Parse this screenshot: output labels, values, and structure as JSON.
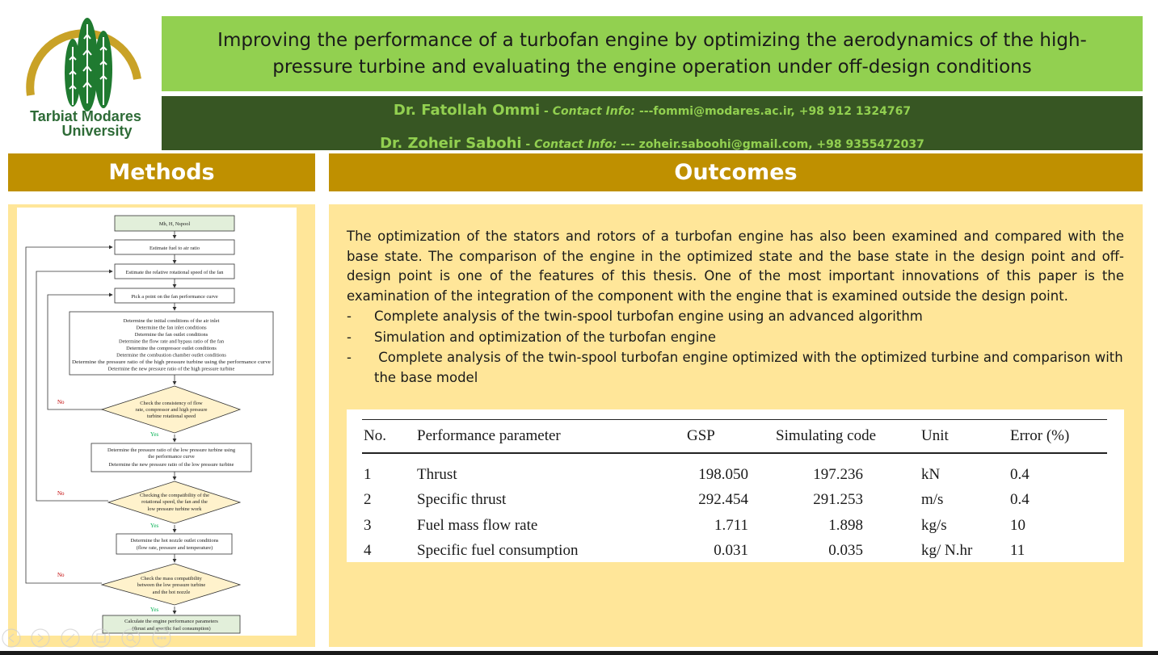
{
  "header": {
    "title": "Improving the performance of a turbofan engine by optimizing the aerodynamics of the high-pressure turbine and evaluating the engine operation under off-design conditions",
    "university": [
      "Tarbiat Modares",
      "University"
    ],
    "authors": [
      {
        "name": "Dr. Fatollah Ommi",
        "separator": " - ",
        "contact_label": "Contact Info:",
        "contact": " ---fommi@modares.ac.ir, +98 912 1324767"
      },
      {
        "name": "Dr. Zoheir Sabohi",
        "separator": " - ",
        "contact_label": "Contact Info:",
        "contact": " --- zoheir.saboohi@gmail.com, +98 9355472037"
      }
    ]
  },
  "methods": {
    "heading": "Methods",
    "flowchart": {
      "inputs": "Mh, H, Nspool",
      "step1": "Estimate fuel to air ratio",
      "step2": "Estimate the relative rotational speed of the fan",
      "step3": "Pick a point on the fan performance curve",
      "step4": [
        "Determine the initial conditions of the air inlet",
        "Determine the fan inlet conditions",
        "Determine the fan outlet conditions",
        "Determine the flow rate and bypass ratio of the fan",
        "Determine the compressor outlet conditions",
        "Determine the combustion chamber outlet conditions",
        "Determine the pressure ratio of the high pressure turbine using the performance curve",
        "Determine the new pressure ratio of the high pressure turbine"
      ],
      "decision1": [
        "Check the consistency of flow",
        "rate, compressor and high pressure",
        "turbine rotational speed"
      ],
      "step5": [
        "Determine the pressure ratio of the low pressure turbine using",
        "the performance curve",
        "Determine the new pressure ratio of the low pressure turbine"
      ],
      "decision2": [
        "Checking the compatibility of the",
        "rotational speed, the fan and the",
        "low pressure turbine work"
      ],
      "step6": [
        "Determine the hot nozzle outlet conditions",
        "(flow rate, pressure and temperature)"
      ],
      "decision3": [
        "Check the mass compatibility",
        "between the low pressure turbine",
        "and the hot nozzle"
      ],
      "step7": [
        "Calculate the engine performance parameters",
        "(thrust and specific fuel consumption)"
      ],
      "yes": "Yes",
      "no": "No"
    }
  },
  "outcomes": {
    "heading": "Outcomes",
    "intro": "The optimization of the stators and rotors of a turbofan engine has also been examined and compared with the base state. The comparison of the engine in the optimized state and the base state in the design point and off-design point is one of the features of this thesis. One of the most important innovations of this paper is the examination of the integration of the component with the engine that is examined outside the design point.",
    "bullets": [
      {
        "dash": "-",
        "text": "Complete analysis of the twin-spool turbofan engine using an advanced algorithm"
      },
      {
        "dash": "-",
        "text": "Simulation and optimization of the turbofan engine"
      },
      {
        "dash": "-",
        "text": " Complete analysis of the twin-spool turbofan engine optimized with the optimized turbine and comparison with the base model"
      }
    ],
    "table": {
      "headers": [
        "No.",
        "Performance parameter",
        "GSP",
        "Simulating code",
        "Unit",
        "Error (%)"
      ],
      "rows": [
        [
          "1",
          "Thrust",
          "198.050",
          "197.236",
          "kN",
          "0.4"
        ],
        [
          "2",
          "Specific thrust",
          "292.454",
          "291.253",
          "m/s",
          "0.4"
        ],
        [
          "3",
          "Fuel mass flow rate",
          "1.711",
          "1.898",
          "kg/s",
          "10"
        ],
        [
          "4",
          "Specific fuel consumption",
          "0.031",
          "0.035",
          "kg/ N.hr",
          "11"
        ]
      ]
    }
  },
  "colors": {
    "title_bg": "#92d050",
    "authors_bg": "#375623",
    "section_head_bg": "#bf9000",
    "panel_bg": "#ffe699",
    "flow_box_fill": "#e2efda",
    "diamond_fill": "#fff2cc",
    "yes_color": "#00b050",
    "no_color": "#c00000"
  }
}
